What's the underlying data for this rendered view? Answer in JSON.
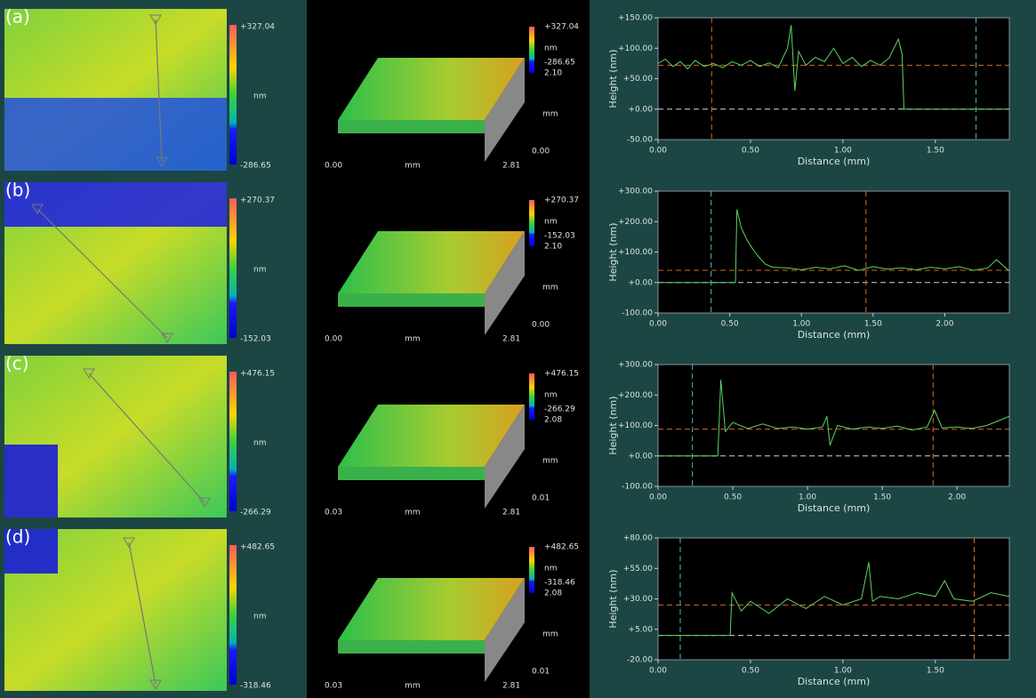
{
  "panels": [
    {
      "label": "(a)",
      "map_max": "+327.04",
      "map_unit": "nm",
      "map_min": "-286.65",
      "view_max": "+327.04",
      "view_unit": "nm",
      "view_min": "-286.65",
      "view_y_max": "2.10",
      "view_y_unit": "mm",
      "view_y_min": "0.00",
      "view_x_min": "0.00",
      "view_x_unit": "mm",
      "view_x_max": "2.81"
    },
    {
      "label": "(b)",
      "map_max": "+270.37",
      "map_unit": "nm",
      "map_min": "-152.03",
      "view_max": "+270.37",
      "view_unit": "nm",
      "view_min": "-152.03",
      "view_y_max": "2.10",
      "view_y_unit": "mm",
      "view_y_min": "0.00",
      "view_x_min": "0.00",
      "view_x_unit": "mm",
      "view_x_max": "2.81"
    },
    {
      "label": "(c)",
      "map_max": "+476.15",
      "map_unit": "nm",
      "map_min": "-266.29",
      "view_max": "+476.15",
      "view_unit": "nm",
      "view_min": "-266.29",
      "view_y_max": "2.08",
      "view_y_unit": "mm",
      "view_y_min": "0.01",
      "view_x_min": "0.03",
      "view_x_unit": "mm",
      "view_x_max": "2.81"
    },
    {
      "label": "(d)",
      "map_max": "+482.65",
      "map_unit": "nm",
      "map_min": "-318.46",
      "view_max": "+482.65",
      "view_unit": "nm",
      "view_min": "-318.46",
      "view_y_max": "2.08",
      "view_y_unit": "mm",
      "view_y_min": "0.01",
      "view_x_min": "0.03",
      "view_x_unit": "mm",
      "view_x_max": "2.81"
    }
  ],
  "chart_data": [
    {
      "type": "line",
      "xlabel": "Distance (mm)",
      "ylabel": "Height (nm)",
      "color": "#5fd35f",
      "x": [
        0,
        0.04,
        0.08,
        0.12,
        0.16,
        0.2,
        0.25,
        0.3,
        0.35,
        0.4,
        0.45,
        0.5,
        0.55,
        0.6,
        0.65,
        0.7,
        0.72,
        0.74,
        0.76,
        0.8,
        0.85,
        0.9,
        0.95,
        1.0,
        1.05,
        1.1,
        1.15,
        1.2,
        1.25,
        1.3,
        1.32,
        1.33,
        1.5,
        1.7,
        1.9
      ],
      "values": [
        75,
        82,
        70,
        78,
        66,
        80,
        70,
        75,
        68,
        78,
        72,
        80,
        70,
        76,
        68,
        100,
        138,
        30,
        95,
        72,
        85,
        78,
        100,
        75,
        85,
        70,
        80,
        72,
        84,
        115,
        90,
        0,
        0,
        0,
        0
      ],
      "xlim": [
        0,
        1.9
      ],
      "xticks": [
        {
          "value": 0,
          "label": "0.00"
        },
        {
          "value": 0.5,
          "label": "0.50"
        },
        {
          "value": 1,
          "label": "1.00"
        },
        {
          "value": 1.5,
          "label": "1.50"
        }
      ],
      "ylim": [
        -50,
        150
      ],
      "yticks": [
        {
          "value": -50,
          "label": "-50.00"
        },
        {
          "value": 0,
          "label": "+0.00"
        },
        {
          "value": 50,
          "label": "+50.00"
        },
        {
          "value": 100,
          "label": "+100.00"
        },
        {
          "value": 150,
          "label": "+150.00"
        }
      ],
      "cursors_x": [
        {
          "value": 0.29,
          "color": "#d2692a"
        },
        {
          "value": 1.72,
          "color": "#4fb7c9"
        }
      ],
      "cursors_y": [
        {
          "value": 72,
          "color": "#d2692a"
        },
        {
          "value": 0,
          "color": "#c9d9e0"
        }
      ]
    },
    {
      "type": "line",
      "xlabel": "Distance (mm)",
      "ylabel": "Height (nm)",
      "color": "#5fd35f",
      "x": [
        0,
        0.3,
        0.54,
        0.55,
        0.58,
        0.62,
        0.66,
        0.7,
        0.75,
        0.8,
        0.9,
        1.0,
        1.1,
        1.2,
        1.3,
        1.4,
        1.5,
        1.6,
        1.7,
        1.8,
        1.9,
        2.0,
        2.1,
        2.2,
        2.3,
        2.36,
        2.45
      ],
      "values": [
        0,
        0,
        0,
        240,
        180,
        140,
        110,
        85,
        60,
        50,
        48,
        42,
        50,
        45,
        55,
        40,
        52,
        44,
        48,
        42,
        50,
        45,
        52,
        40,
        48,
        75,
        38
      ],
      "xlim": [
        0,
        2.45
      ],
      "xticks": [
        {
          "value": 0,
          "label": "0.00"
        },
        {
          "value": 0.5,
          "label": "0.50"
        },
        {
          "value": 1,
          "label": "1.00"
        },
        {
          "value": 1.5,
          "label": "1.50"
        },
        {
          "value": 2,
          "label": "2.00"
        }
      ],
      "ylim": [
        -100,
        300
      ],
      "yticks": [
        {
          "value": -100,
          "label": "-100.00"
        },
        {
          "value": 0,
          "label": "+0.00"
        },
        {
          "value": 100,
          "label": "+100.00"
        },
        {
          "value": 200,
          "label": "+200.00"
        },
        {
          "value": 300,
          "label": "+300.00"
        }
      ],
      "cursors_x": [
        {
          "value": 0.37,
          "color": "#4fb7c9"
        },
        {
          "value": 1.45,
          "color": "#d2692a"
        }
      ],
      "cursors_y": [
        {
          "value": 40,
          "color": "#d2692a"
        },
        {
          "value": 0,
          "color": "#c9d9e0"
        }
      ]
    },
    {
      "type": "line",
      "xlabel": "Distance (mm)",
      "ylabel": "Height (nm)",
      "color": "#5fd35f",
      "x": [
        0,
        0.3,
        0.4,
        0.42,
        0.45,
        0.5,
        0.6,
        0.7,
        0.8,
        0.9,
        1.0,
        1.1,
        1.13,
        1.15,
        1.2,
        1.3,
        1.4,
        1.5,
        1.6,
        1.7,
        1.8,
        1.85,
        1.9,
        2.0,
        2.1,
        2.2,
        2.35
      ],
      "values": [
        0,
        0,
        0,
        250,
        80,
        110,
        90,
        105,
        90,
        95,
        88,
        95,
        130,
        35,
        100,
        88,
        95,
        90,
        98,
        85,
        95,
        150,
        92,
        95,
        90,
        100,
        130
      ],
      "xlim": [
        0,
        2.35
      ],
      "xticks": [
        {
          "value": 0,
          "label": "0.00"
        },
        {
          "value": 0.5,
          "label": "0.50"
        },
        {
          "value": 1,
          "label": "1.00"
        },
        {
          "value": 1.5,
          "label": "1.50"
        },
        {
          "value": 2,
          "label": "2.00"
        }
      ],
      "ylim": [
        -100,
        300
      ],
      "yticks": [
        {
          "value": -100,
          "label": "-100.00"
        },
        {
          "value": 0,
          "label": "+0.00"
        },
        {
          "value": 100,
          "label": "+100.00"
        },
        {
          "value": 200,
          "label": "+200.00"
        },
        {
          "value": 300,
          "label": "+300.00"
        }
      ],
      "cursors_x": [
        {
          "value": 0.23,
          "color": "#4fb7c9"
        },
        {
          "value": 1.84,
          "color": "#d2692a"
        }
      ],
      "cursors_y": [
        {
          "value": 88,
          "color": "#d2692a"
        },
        {
          "value": 0,
          "color": "#c9d9e0"
        }
      ]
    },
    {
      "type": "line",
      "xlabel": "Distance (mm)",
      "ylabel": "Height (nm)",
      "color": "#5fd35f",
      "x": [
        0,
        0.3,
        0.39,
        0.4,
        0.45,
        0.5,
        0.6,
        0.7,
        0.8,
        0.9,
        1.0,
        1.1,
        1.14,
        1.16,
        1.2,
        1.3,
        1.4,
        1.5,
        1.55,
        1.6,
        1.7,
        1.8,
        1.9
      ],
      "values": [
        0,
        0,
        0,
        35,
        20,
        28,
        18,
        30,
        22,
        32,
        25,
        30,
        60,
        28,
        32,
        30,
        35,
        32,
        45,
        30,
        28,
        35,
        32
      ],
      "xlim": [
        0,
        1.9
      ],
      "xticks": [
        {
          "value": 0,
          "label": "0.00"
        },
        {
          "value": 0.5,
          "label": "0.50"
        },
        {
          "value": 1,
          "label": "1.00"
        },
        {
          "value": 1.5,
          "label": "1.50"
        }
      ],
      "ylim": [
        -20,
        80
      ],
      "yticks": [
        {
          "value": -20,
          "label": "-20.00"
        },
        {
          "value": 5,
          "label": "+5.00"
        },
        {
          "value": 30,
          "label": "+30.00"
        },
        {
          "value": 55,
          "label": "+55.00"
        },
        {
          "value": 80,
          "label": "+80.00"
        }
      ],
      "cursors_x": [
        {
          "value": 0.12,
          "color": "#4fb7c9"
        },
        {
          "value": 1.71,
          "color": "#d2692a"
        }
      ],
      "cursors_y": [
        {
          "value": 25,
          "color": "#d2692a"
        },
        {
          "value": 0,
          "color": "#c9d9e0"
        }
      ]
    }
  ]
}
